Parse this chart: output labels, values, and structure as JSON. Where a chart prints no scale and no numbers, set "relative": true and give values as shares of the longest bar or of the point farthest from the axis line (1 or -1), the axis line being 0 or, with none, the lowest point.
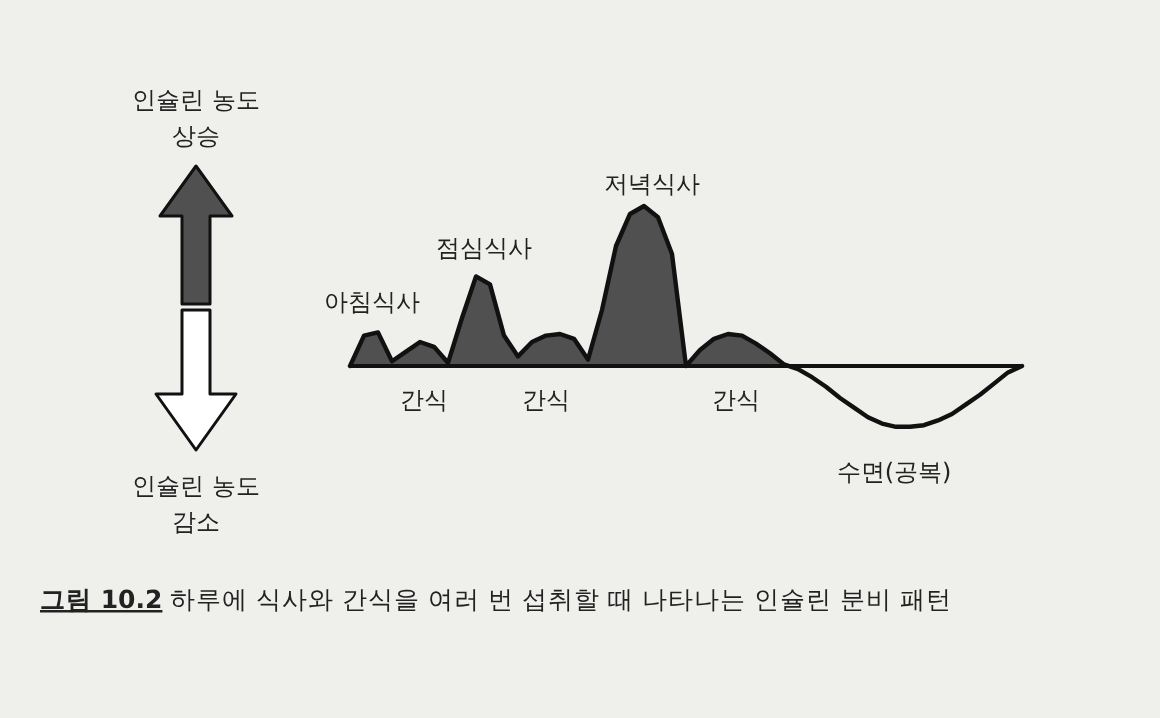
{
  "chart_data": {
    "type": "area",
    "relative": true,
    "title": "**그림 10.2** 하루에 식사와 간식을 여러 번 섭취할 때 나타나는 인슐린 분비 패턴",
    "categories": [
      null,
      null,
      null,
      null,
      null,
      null,
      null,
      null,
      null,
      null,
      null,
      null,
      null,
      null,
      null,
      null,
      null,
      null,
      null,
      null,
      null,
      null,
      null,
      null,
      null,
      null,
      null,
      null,
      null,
      null,
      null,
      null,
      null,
      null,
      null,
      null,
      null,
      null,
      null,
      null,
      null,
      null,
      null,
      null,
      null,
      null,
      null,
      null,
      null
    ],
    "series": [
      {
        "color": "#111111",
        "values": [
          0,
          0.19,
          0.21,
          0.03,
          0.09,
          0.15,
          0.12,
          0.02,
          0.3,
          0.56,
          0.51,
          0.19,
          0.06,
          0.15,
          0.19,
          0.2,
          0.17,
          0.04,
          0.35,
          0.75,
          0.95,
          1,
          0.93,
          0.7,
          0,
          0.1,
          0.17,
          0.2,
          0.19,
          0.14,
          0.08,
          0.01,
          -0.02,
          -0.07,
          -0.13,
          -0.2,
          -0.26,
          -0.32,
          -0.36,
          -0.38,
          -0.38,
          -0.37,
          -0.34,
          -0.3,
          -0.24,
          -0.18,
          -0.11,
          -0.04,
          0
        ]
      }
    ],
    "annotations": [
      "아침식사",
      "점심식사",
      "저녁식사",
      "간식",
      "간식",
      "간식",
      "수면(공복)",
      "인슐린 농도 상승",
      "인슐린 농도 감소"
    ]
  }
}
